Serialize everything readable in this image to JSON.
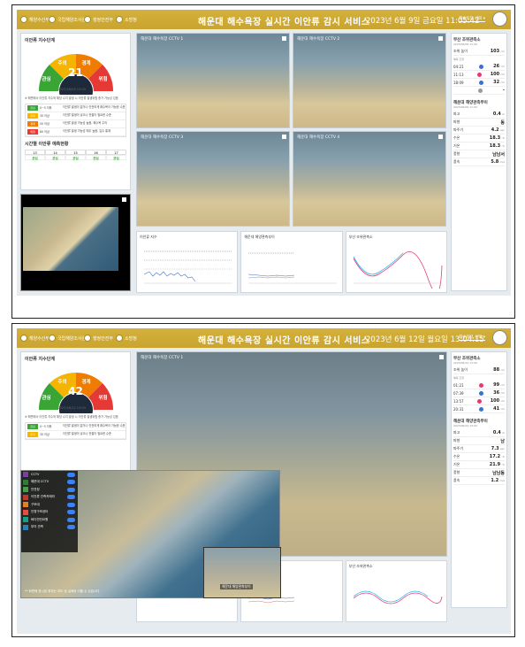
{
  "title": "해운대 해수욕장 실시간 이안류 감시 서비스",
  "logos": [
    "해양수산부",
    "국립해양조사원",
    "행정안전부",
    "소방청"
  ],
  "area_select": "해수욕장 선택",
  "screens": [
    {
      "date": "2023년 6월 9일 금요일 11:05:42",
      "gauge": {
        "title": "이안류 지수단계",
        "value": "21",
        "levels": [
          "관심",
          "주의",
          "경계",
          "위험"
        ],
        "updated": "2023/06/09 10:00"
      },
      "note": "※ 해변에서 이안류 지수와 해당 수치 발생 시 이안류 발생위험 증가 가능성 있음",
      "legend": [
        {
          "step": "관심",
          "range": "0~5 이하",
          "desc": "이안류 발생이 없거나 안전하게 해수욕이 가능한 수준",
          "color": "#38a534"
        },
        {
          "step": "주의",
          "range": "30 이상",
          "desc": "이안류 발생이 낮으나 관찰이 필요한 수준",
          "color": "#f4b400"
        },
        {
          "step": "경계",
          "range": "50 이상",
          "desc": "이안류 발생 가능성 높음, 해수욕 주의",
          "color": "#ef7c00"
        },
        {
          "step": "위험",
          "range": "80 이상",
          "desc": "이안류 발생 가능성 매우 높음, 입수 통제",
          "color": "#e53935"
        }
      ],
      "forecast_title": "시간별 이안류 예측현황",
      "forecast_times": [
        "13",
        "14",
        "15",
        "16",
        "17"
      ],
      "forecast_values": [
        "관심",
        "관심",
        "관심",
        "관심",
        "관심"
      ],
      "cameras": [
        "해운대 해수욕장 CCTV 1",
        "해운대 해수욕장 CCTV 2",
        "해운대 해수욕장 CCTV 3",
        "해운대 해수욕장 CCTV 4"
      ],
      "charts": [
        "이안류 지수",
        "해운대 해양관측부이",
        "부산 조위관측소"
      ],
      "right": {
        "h1": "부산 조위관측소",
        "s1": "2023/06/09 11:00",
        "rows1": [
          {
            "k": "조위 높이",
            "v": "103",
            "u": "cm"
          }
        ],
        "tide_label": "예측 조위",
        "tides": [
          {
            "t": "04:21",
            "v": "26",
            "u": "cm"
          },
          {
            "t": "11:13",
            "v": "100",
            "u": "cm"
          },
          {
            "t": "18:09",
            "v": "32",
            "u": "cm"
          },
          {
            "t": "",
            "v": "-",
            "u": ""
          }
        ],
        "h2": "해운대 해양관측부이",
        "s2": "2023/06/09 11:00",
        "rows2": [
          {
            "k": "파고",
            "v": "0.4",
            "u": "m"
          },
          {
            "k": "파향",
            "v": "동",
            "u": ""
          },
          {
            "k": "파주기",
            "v": "4.2",
            "u": "sec"
          },
          {
            "k": "수온",
            "v": "18.3",
            "u": "°C"
          },
          {
            "k": "기온",
            "v": "18.3",
            "u": "°C"
          },
          {
            "k": "풍향",
            "v": "남남서",
            "u": ""
          },
          {
            "k": "풍속",
            "v": "5.8",
            "u": "m/s"
          }
        ]
      }
    },
    {
      "date": "2023년 6월 12일 월요일 13:04:15",
      "gauge": {
        "title": "이안류 지수단계",
        "value": "42",
        "levels": [
          "관심",
          "주의",
          "경계",
          "위험"
        ],
        "updated": "2023/06/12 13:00"
      },
      "note": "※ 해변에서 이안류 지수와 해당 수치 발생 시 이안류 발생위험 증가 가능성 있음",
      "layers": [
        "CCTV",
        "해운대 CCTV",
        "안전정",
        "이안류 관측카메라",
        "구조대",
        "인명구조센터",
        "바다안전요원",
        "부이 관측"
      ],
      "layer_colors": [
        "#7b3fa0",
        "#2e7d32",
        "#43a047",
        "#c0392b",
        "#e67e22",
        "#e74c3c",
        "#16a085",
        "#2980b9"
      ],
      "map_note": "** 화면에 표시된 위치는 지도 상 실제와 다를 수 있습니다",
      "inset_label": "해운대 해양관측부이",
      "right": {
        "h1": "부산 조위관측소",
        "s1": "2023/06/12 13:00",
        "rows1": [
          {
            "k": "조위 높이",
            "v": "88",
            "u": "cm"
          }
        ],
        "tide_label": "예측 조위",
        "tides": [
          {
            "t": "01:21",
            "v": "99",
            "u": "cm"
          },
          {
            "t": "07:39",
            "v": "36",
            "u": "cm"
          },
          {
            "t": "13:57",
            "v": "100",
            "u": "cm"
          },
          {
            "t": "20:31",
            "v": "41",
            "u": "cm"
          }
        ],
        "h2": "해운대 해양관측부이",
        "s2": "2023/06/12 13:00",
        "rows2": [
          {
            "k": "파고",
            "v": "0.4",
            "u": "m"
          },
          {
            "k": "파향",
            "v": "남",
            "u": ""
          },
          {
            "k": "파주기",
            "v": "7.3",
            "u": "sec"
          },
          {
            "k": "수온",
            "v": "17.2",
            "u": "°C"
          },
          {
            "k": "기온",
            "v": "21.9",
            "u": "°C"
          },
          {
            "k": "풍향",
            "v": "남남동",
            "u": ""
          },
          {
            "k": "풍속",
            "v": "1.2",
            "u": "m/s"
          }
        ]
      },
      "charts": [
        "이안류 지수",
        "해운대 해양관측부이",
        "부산 조위관측소"
      ]
    }
  ]
}
